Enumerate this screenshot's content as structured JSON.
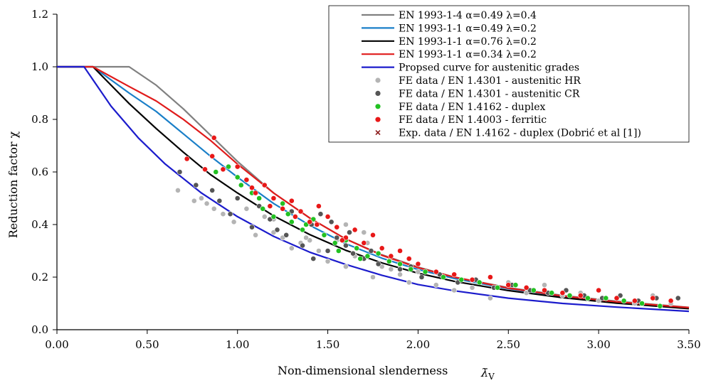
{
  "chart_data": {
    "type": "scatter",
    "title": "",
    "xlabel": "Non-dimensional slenderness",
    "xlabel_symbol": "λ̄",
    "xlabel_subscript": "V",
    "ylabel": "Reduction factor χ",
    "xlim": [
      0,
      3.5
    ],
    "ylim": [
      0,
      1.2
    ],
    "x_ticks": [
      "0.00",
      "0.50",
      "1.00",
      "1.50",
      "2.00",
      "2.50",
      "3.00",
      "3.50"
    ],
    "y_ticks": [
      "0.0",
      "0.2",
      "0.4",
      "0.6",
      "0.8",
      "1.0",
      "1.2"
    ],
    "grid": false,
    "legend_position": "top-right",
    "curves": [
      {
        "name": "EN 1993-1-4 α=0.49 λ=0.4",
        "color": "#808080",
        "x": [
          0,
          0.2,
          0.4,
          0.55,
          0.7,
          0.85,
          1.0,
          1.2,
          1.4,
          1.6,
          1.8,
          2.0,
          2.2,
          2.5,
          2.8,
          3.1,
          3.5
        ],
        "y": [
          1.0,
          1.0,
          1.0,
          0.93,
          0.84,
          0.74,
          0.64,
          0.52,
          0.425,
          0.345,
          0.285,
          0.238,
          0.2,
          0.16,
          0.13,
          0.108,
          0.085
        ]
      },
      {
        "name": "EN 1993-1-1 α=0.49 λ=0.2",
        "color": "#1a7fc8",
        "x": [
          0,
          0.2,
          0.4,
          0.55,
          0.7,
          0.85,
          1.0,
          1.2,
          1.4,
          1.6,
          1.8,
          2.0,
          2.2,
          2.5,
          2.8,
          3.1,
          3.5
        ],
        "y": [
          1.0,
          1.0,
          0.9,
          0.83,
          0.745,
          0.66,
          0.58,
          0.48,
          0.397,
          0.327,
          0.272,
          0.229,
          0.195,
          0.156,
          0.127,
          0.105,
          0.083
        ]
      },
      {
        "name": "EN 1993-1-1 α=0.76 λ=0.2",
        "color": "#000000",
        "x": [
          0,
          0.2,
          0.4,
          0.55,
          0.7,
          0.85,
          1.0,
          1.2,
          1.4,
          1.6,
          1.8,
          2.0,
          2.2,
          2.5,
          2.8,
          3.1,
          3.5
        ],
        "y": [
          1.0,
          1.0,
          0.86,
          0.765,
          0.675,
          0.59,
          0.52,
          0.433,
          0.362,
          0.302,
          0.254,
          0.215,
          0.184,
          0.149,
          0.122,
          0.101,
          0.08
        ]
      },
      {
        "name": "EN 1993-1-1 α=0.34 λ=0.2",
        "color": "#e01b1b",
        "x": [
          0,
          0.2,
          0.4,
          0.55,
          0.7,
          0.85,
          1.0,
          1.2,
          1.4,
          1.6,
          1.8,
          2.0,
          2.2,
          2.5,
          2.8,
          3.1,
          3.5
        ],
        "y": [
          1.0,
          1.0,
          0.925,
          0.87,
          0.8,
          0.72,
          0.63,
          0.52,
          0.425,
          0.345,
          0.283,
          0.236,
          0.2,
          0.158,
          0.128,
          0.106,
          0.084
        ]
      },
      {
        "name": "Propsed curve for austenitic grades",
        "color": "#1c1ccc",
        "x": [
          0,
          0.15,
          0.3,
          0.45,
          0.6,
          0.8,
          1.0,
          1.2,
          1.4,
          1.6,
          1.8,
          2.0,
          2.2,
          2.5,
          2.8,
          3.1,
          3.5
        ],
        "y": [
          1.0,
          1.0,
          0.85,
          0.73,
          0.63,
          0.52,
          0.43,
          0.355,
          0.295,
          0.248,
          0.207,
          0.172,
          0.148,
          0.12,
          0.1,
          0.086,
          0.07
        ]
      }
    ],
    "series": [
      {
        "name": "FE data / EN 1.4301 - austenitic HR",
        "color": "#b4b4b4",
        "x": [
          0.67,
          0.76,
          0.8,
          0.83,
          0.87,
          0.92,
          0.98,
          1.05,
          1.1,
          1.15,
          1.2,
          1.25,
          1.3,
          1.35,
          1.4,
          1.45,
          1.5,
          1.55,
          1.6,
          1.65,
          1.7,
          1.75,
          1.8,
          1.85,
          1.9,
          1.95,
          2.0,
          2.1,
          2.2,
          2.3,
          2.4,
          2.5,
          2.6,
          2.7,
          2.8,
          2.9,
          3.0,
          3.1,
          3.2,
          3.3,
          3.4,
          1.2,
          1.38,
          1.6,
          1.72
        ],
        "y": [
          0.53,
          0.49,
          0.5,
          0.48,
          0.46,
          0.44,
          0.41,
          0.46,
          0.36,
          0.43,
          0.37,
          0.35,
          0.31,
          0.33,
          0.34,
          0.3,
          0.26,
          0.34,
          0.24,
          0.28,
          0.37,
          0.2,
          0.24,
          0.23,
          0.21,
          0.18,
          0.22,
          0.17,
          0.15,
          0.16,
          0.12,
          0.18,
          0.14,
          0.17,
          0.13,
          0.14,
          0.11,
          0.12,
          0.1,
          0.13,
          0.1,
          0.42,
          0.35,
          0.4,
          0.33
        ]
      },
      {
        "name": "FE data / EN 1.4301 - austenitic CR",
        "color": "#555555",
        "x": [
          0.68,
          0.77,
          0.86,
          0.9,
          0.96,
          1.0,
          1.08,
          1.12,
          1.18,
          1.22,
          1.27,
          1.32,
          1.36,
          1.41,
          1.46,
          1.5,
          1.55,
          1.6,
          1.64,
          1.7,
          1.74,
          1.78,
          1.84,
          1.9,
          1.96,
          2.02,
          2.12,
          2.22,
          2.32,
          2.42,
          2.52,
          2.62,
          2.72,
          2.82,
          2.92,
          3.02,
          3.12,
          3.22,
          3.32,
          3.44,
          1.52,
          1.62,
          1.3,
          1.42
        ],
        "y": [
          0.6,
          0.55,
          0.53,
          0.49,
          0.44,
          0.5,
          0.39,
          0.47,
          0.42,
          0.38,
          0.36,
          0.43,
          0.32,
          0.4,
          0.44,
          0.3,
          0.35,
          0.32,
          0.29,
          0.27,
          0.3,
          0.25,
          0.26,
          0.23,
          0.24,
          0.2,
          0.21,
          0.18,
          0.19,
          0.16,
          0.17,
          0.15,
          0.14,
          0.15,
          0.13,
          0.12,
          0.13,
          0.11,
          0.12,
          0.12,
          0.41,
          0.37,
          0.45,
          0.27
        ]
      },
      {
        "name": "FE data / EN 1.4162 - duplex",
        "color": "#22c122",
        "x": [
          0.88,
          0.95,
          1.02,
          1.08,
          1.14,
          1.2,
          1.25,
          1.3,
          1.36,
          1.42,
          1.48,
          1.54,
          1.6,
          1.66,
          1.72,
          1.78,
          1.84,
          1.9,
          1.96,
          2.04,
          2.14,
          2.24,
          2.34,
          2.44,
          2.54,
          2.64,
          2.74,
          2.84,
          2.94,
          3.04,
          3.14,
          3.24,
          3.34,
          1.0,
          1.12,
          1.28,
          1.38,
          1.56,
          1.68
        ],
        "y": [
          0.6,
          0.62,
          0.55,
          0.52,
          0.46,
          0.43,
          0.48,
          0.41,
          0.38,
          0.42,
          0.36,
          0.33,
          0.34,
          0.31,
          0.28,
          0.29,
          0.26,
          0.25,
          0.23,
          0.22,
          0.2,
          0.19,
          0.18,
          0.16,
          0.17,
          0.15,
          0.14,
          0.13,
          0.12,
          0.12,
          0.11,
          0.1,
          0.09,
          0.58,
          0.5,
          0.44,
          0.4,
          0.3,
          0.27
        ]
      },
      {
        "name": "FE data / EN 1.4003 - ferritic",
        "color": "#e81818",
        "x": [
          0.72,
          0.82,
          0.86,
          0.87,
          0.92,
          1.0,
          1.05,
          1.1,
          1.15,
          1.2,
          1.25,
          1.3,
          1.35,
          1.4,
          1.45,
          1.5,
          1.55,
          1.6,
          1.65,
          1.7,
          1.75,
          1.8,
          1.85,
          1.9,
          1.95,
          2.0,
          2.1,
          2.2,
          2.3,
          2.4,
          2.5,
          2.6,
          2.7,
          2.8,
          2.9,
          3.0,
          3.1,
          3.2,
          3.3,
          3.4,
          1.08,
          1.18,
          1.32,
          1.44,
          1.58
        ],
        "y": [
          0.65,
          0.61,
          0.66,
          0.73,
          0.61,
          0.62,
          0.57,
          0.52,
          0.55,
          0.5,
          0.46,
          0.49,
          0.45,
          0.41,
          0.47,
          0.43,
          0.39,
          0.35,
          0.38,
          0.33,
          0.36,
          0.31,
          0.28,
          0.3,
          0.27,
          0.25,
          0.22,
          0.21,
          0.19,
          0.2,
          0.17,
          0.16,
          0.15,
          0.14,
          0.13,
          0.15,
          0.12,
          0.11,
          0.12,
          0.11,
          0.54,
          0.47,
          0.43,
          0.4,
          0.34
        ]
      }
    ],
    "marker_legend": [
      {
        "name": "Exp. data / EN 1.4162 - duplex (Dobrić et al [1])",
        "color": "#8b1a1a",
        "marker": "x"
      }
    ]
  }
}
